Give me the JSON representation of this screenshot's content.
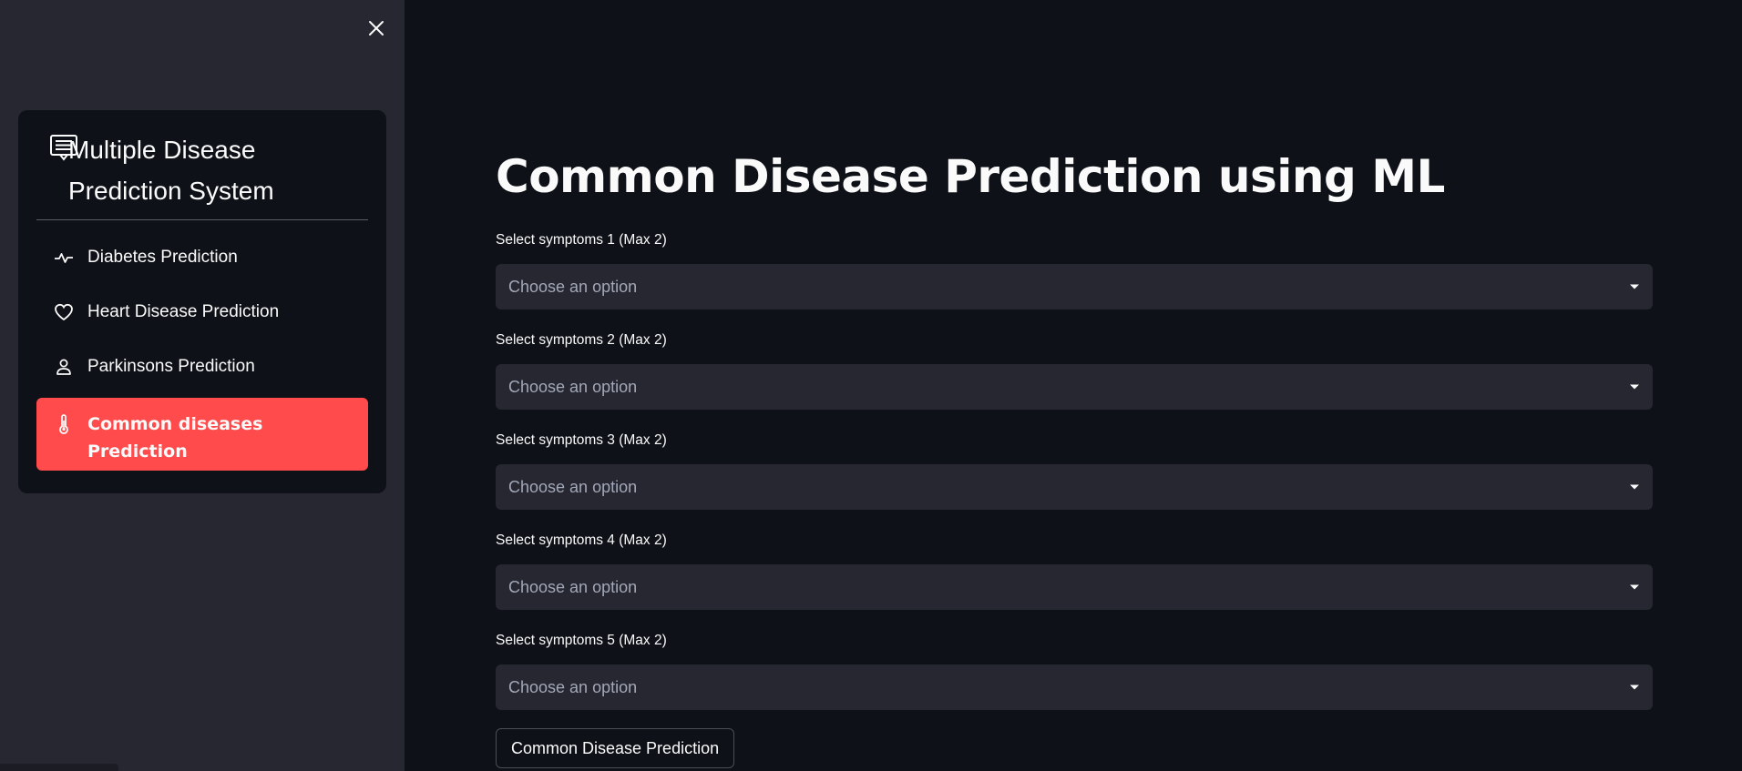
{
  "sidebar": {
    "title": "Multiple Disease Prediction System",
    "title_icon": "document-list-icon",
    "close_icon": "close-icon",
    "items": [
      {
        "label": "Diabetes Prediction",
        "icon": "activity-icon",
        "active": false
      },
      {
        "label": "Heart Disease Prediction",
        "icon": "heart-icon",
        "active": false
      },
      {
        "label": "Parkinsons Prediction",
        "icon": "person-icon",
        "active": false
      },
      {
        "label": "Common diseases Prediction",
        "icon": "thermometer-icon",
        "active": true
      }
    ]
  },
  "main": {
    "title": "Common Disease Prediction using ML",
    "fields": [
      {
        "label": "Select symptoms 1 (Max 2)",
        "placeholder": "Choose an option"
      },
      {
        "label": "Select symptoms 2 (Max 2)",
        "placeholder": "Choose an option"
      },
      {
        "label": "Select symptoms 3 (Max 2)",
        "placeholder": "Choose an option"
      },
      {
        "label": "Select symptoms 4 (Max 2)",
        "placeholder": "Choose an option"
      },
      {
        "label": "Select symptoms 5 (Max 2)",
        "placeholder": "Choose an option"
      }
    ],
    "button_label": "Common Disease Prediction"
  },
  "colors": {
    "background": "#0e1117",
    "sidebar": "#262730",
    "accent": "#ff4b4b",
    "input": "#262730"
  }
}
